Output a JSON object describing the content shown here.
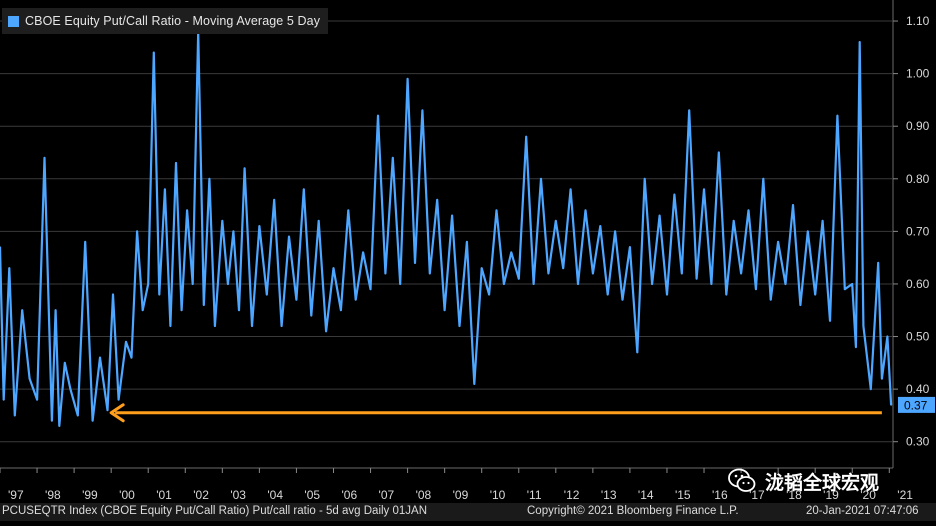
{
  "chart_data": {
    "type": "line",
    "title": "",
    "xlabel": "",
    "ylabel": "",
    "ylim": [
      0.25,
      1.14
    ],
    "xlim": [
      1997.0,
      2021.1
    ],
    "y_ticks": [
      0.3,
      0.4,
      0.5,
      0.6,
      0.7,
      0.8,
      0.9,
      1.0,
      1.1
    ],
    "y_tick_labels": [
      "0.30",
      "0.40",
      "0.50",
      "0.60",
      "0.70",
      "0.80",
      "0.90",
      "1.00",
      "1.10"
    ],
    "x_ticks": [
      1997,
      1998,
      1999,
      2000,
      2001,
      2002,
      2003,
      2004,
      2005,
      2006,
      2007,
      2008,
      2009,
      2010,
      2011,
      2012,
      2013,
      2014,
      2015,
      2016,
      2017,
      2018,
      2019,
      2020,
      2021
    ],
    "x_tick_labels": [
      "'97",
      "'98",
      "'99",
      "'00",
      "'01",
      "'02",
      "'03",
      "'04",
      "'05",
      "'06",
      "'07",
      "'08",
      "'09",
      "'10",
      "'11",
      "'12",
      "'13",
      "'14",
      "'15",
      "'16",
      "'17",
      "'18",
      "'19",
      "'20",
      "'21"
    ],
    "grid": "horizontal",
    "legend_position": "top-left",
    "series": [
      {
        "name": "CBOE Equity Put/Call Ratio - Moving Average 5 Day",
        "color": "#4da6ff",
        "x": [
          1997.0,
          1997.1,
          1997.25,
          1997.4,
          1997.6,
          1997.8,
          1998.0,
          1998.2,
          1998.4,
          1998.5,
          1998.6,
          1998.75,
          1998.9,
          1999.1,
          1999.3,
          1999.5,
          1999.7,
          1999.9,
          2000.05,
          2000.2,
          2000.4,
          2000.55,
          2000.7,
          2000.85,
          2001.0,
          2001.15,
          2001.3,
          2001.45,
          2001.6,
          2001.75,
          2001.9,
          2002.05,
          2002.2,
          2002.35,
          2002.5,
          2002.65,
          2002.8,
          2003.0,
          2003.15,
          2003.3,
          2003.45,
          2003.6,
          2003.8,
          2004.0,
          2004.2,
          2004.4,
          2004.6,
          2004.8,
          2005.0,
          2005.2,
          2005.4,
          2005.6,
          2005.8,
          2006.0,
          2006.2,
          2006.4,
          2006.6,
          2006.8,
          2007.0,
          2007.2,
          2007.4,
          2007.6,
          2007.8,
          2008.0,
          2008.2,
          2008.4,
          2008.6,
          2008.8,
          2009.0,
          2009.2,
          2009.4,
          2009.6,
          2009.8,
          2010.0,
          2010.2,
          2010.4,
          2010.6,
          2010.8,
          2011.0,
          2011.2,
          2011.4,
          2011.6,
          2011.8,
          2012.0,
          2012.2,
          2012.4,
          2012.6,
          2012.8,
          2013.0,
          2013.2,
          2013.4,
          2013.6,
          2013.8,
          2014.0,
          2014.2,
          2014.4,
          2014.6,
          2014.8,
          2015.0,
          2015.2,
          2015.4,
          2015.6,
          2015.8,
          2016.0,
          2016.2,
          2016.4,
          2016.6,
          2016.8,
          2017.0,
          2017.2,
          2017.4,
          2017.6,
          2017.8,
          2018.0,
          2018.2,
          2018.4,
          2018.6,
          2018.8,
          2019.0,
          2019.2,
          2019.4,
          2019.6,
          2019.8,
          2020.0,
          2020.1,
          2020.2,
          2020.3,
          2020.5,
          2020.7,
          2020.8,
          2020.95,
          2021.05
        ],
        "values": [
          0.67,
          0.38,
          0.63,
          0.35,
          0.55,
          0.42,
          0.38,
          0.84,
          0.34,
          0.55,
          0.33,
          0.45,
          0.4,
          0.35,
          0.68,
          0.34,
          0.46,
          0.36,
          0.58,
          0.38,
          0.49,
          0.46,
          0.7,
          0.55,
          0.6,
          1.04,
          0.58,
          0.78,
          0.52,
          0.83,
          0.55,
          0.74,
          0.6,
          1.08,
          0.56,
          0.8,
          0.52,
          0.72,
          0.6,
          0.7,
          0.55,
          0.82,
          0.52,
          0.71,
          0.58,
          0.76,
          0.52,
          0.69,
          0.57,
          0.78,
          0.54,
          0.72,
          0.51,
          0.63,
          0.55,
          0.74,
          0.57,
          0.66,
          0.59,
          0.92,
          0.62,
          0.84,
          0.6,
          0.99,
          0.64,
          0.93,
          0.62,
          0.76,
          0.55,
          0.73,
          0.52,
          0.68,
          0.41,
          0.63,
          0.58,
          0.74,
          0.6,
          0.66,
          0.61,
          0.88,
          0.6,
          0.8,
          0.62,
          0.72,
          0.63,
          0.78,
          0.6,
          0.74,
          0.62,
          0.71,
          0.58,
          0.7,
          0.57,
          0.67,
          0.47,
          0.8,
          0.6,
          0.73,
          0.58,
          0.77,
          0.62,
          0.93,
          0.61,
          0.78,
          0.6,
          0.85,
          0.58,
          0.72,
          0.62,
          0.74,
          0.59,
          0.8,
          0.57,
          0.68,
          0.6,
          0.75,
          0.56,
          0.7,
          0.58,
          0.72,
          0.53,
          0.92,
          0.59,
          0.6,
          0.48,
          1.06,
          0.52,
          0.4,
          0.64,
          0.42,
          0.5,
          0.37
        ]
      }
    ],
    "last_value_label": "0.37",
    "annotation": {
      "type": "arrow",
      "color": "#ff9f1c",
      "y": 0.355,
      "x_from": 2020.8,
      "x_to": 2000.0
    }
  },
  "legend": {
    "label": "CBOE Equity Put/Call Ratio - Moving Average 5 Day"
  },
  "footer": {
    "left": "PCUSEQTR Index (CBOE Equity Put/Call Ratio) Put/call ratio - 5d avg  Daily 01JAN",
    "right_copyright": "Copyright© 2021 Bloomberg Finance L.P.",
    "timestamp": "20-Jan-2021 07:47:06"
  },
  "watermark": {
    "text": "泷韬全球宏观"
  },
  "colors": {
    "background": "#000000",
    "series": "#4da6ff",
    "arrow": "#ff9f1c",
    "grid": "#3a3a3a",
    "axis_text": "#d8d8d8"
  }
}
